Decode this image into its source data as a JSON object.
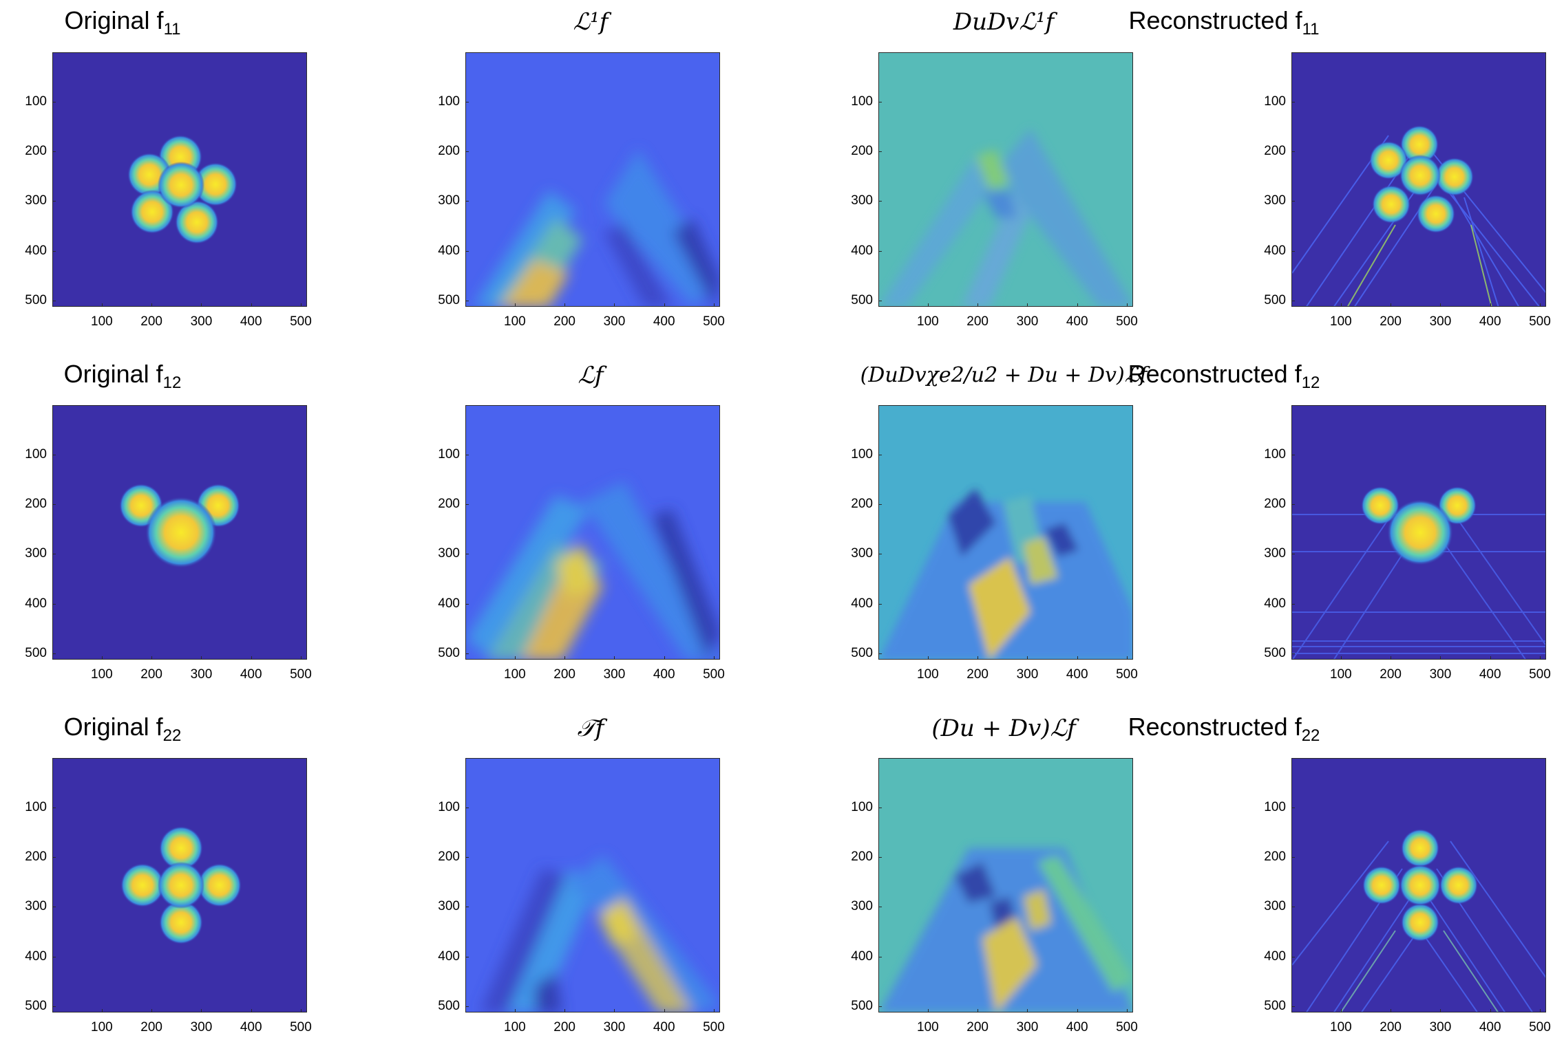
{
  "colors": {
    "background_dark": "#3b2fa8",
    "background_blue": "#4a63ef",
    "background_teal": "#57bbb8",
    "background_cyan": "#48aece",
    "bright_yellow": "#f8ea2a",
    "axis": "#2a2a2a"
  },
  "axes": {
    "y_ticks": [
      "100",
      "200",
      "300",
      "400",
      "500"
    ],
    "x_ticks": [
      "100",
      "200",
      "300",
      "400",
      "500"
    ]
  },
  "rows": [
    {
      "original": {
        "title_text": "Original f",
        "title_sub": "11"
      },
      "transform": {
        "title_text": "ℒ¹f"
      },
      "derivative": {
        "title_text": "DuDvℒ¹f"
      },
      "reconstructed": {
        "title_text": "Reconstructed f",
        "title_sub": "11"
      }
    },
    {
      "original": {
        "title_text": "Original f",
        "title_sub": "12"
      },
      "transform": {
        "title_text": "ℒf"
      },
      "derivative": {
        "title_text": "(DuDvχe2/u2 + Du + Dv)ℒf"
      },
      "reconstructed": {
        "title_text": "Reconstructed f",
        "title_sub": "12"
      }
    },
    {
      "original": {
        "title_text": "Original f",
        "title_sub": "22"
      },
      "transform": {
        "title_text": "𝒯f"
      },
      "derivative": {
        "title_text": "(Du + Dv)ℒf"
      },
      "reconstructed": {
        "title_text": "Reconstructed f",
        "title_sub": "22"
      }
    }
  ]
}
